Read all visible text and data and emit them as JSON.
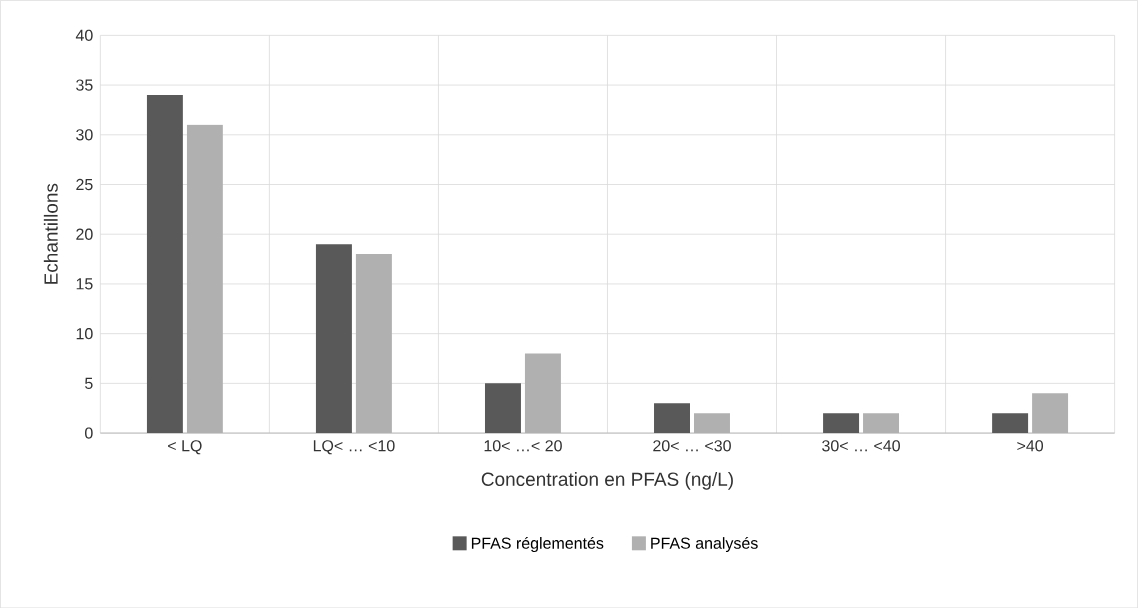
{
  "chart_data": {
    "type": "bar",
    "xlabel": "Concentration en PFAS (ng/L)",
    "ylabel": "Echantillons",
    "categories": [
      "< LQ",
      "LQ< … <10",
      "10< …< 20",
      "20< … <30",
      "30< … <40",
      ">40"
    ],
    "series": [
      {
        "name": "PFAS réglementés",
        "color": "#595959",
        "values": [
          34,
          19,
          5,
          3,
          2,
          2
        ]
      },
      {
        "name": "PFAS analysés",
        "color": "#b0b0b0",
        "values": [
          31,
          18,
          8,
          2,
          2,
          4
        ]
      }
    ],
    "ylim": [
      0,
      40
    ],
    "yticks": [
      0,
      5,
      10,
      15,
      20,
      25,
      30,
      35,
      40
    ],
    "grid": true,
    "legend": "bottom"
  }
}
